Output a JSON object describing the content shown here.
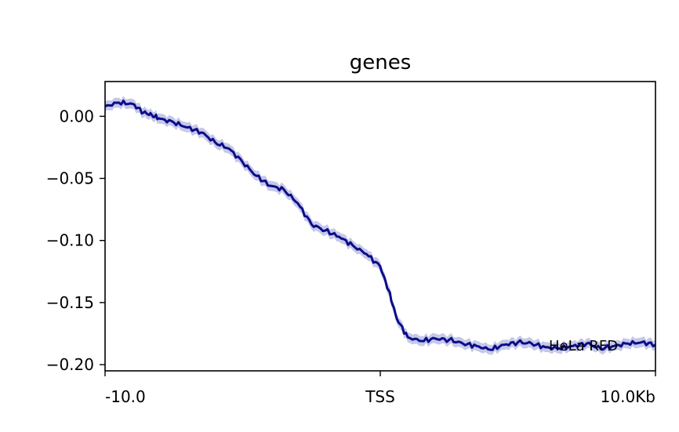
{
  "chart_data": {
    "type": "line",
    "title": "genes",
    "xlabel": "",
    "ylabel": "",
    "x_tick_labels": [
      "-10.0",
      "TSS",
      "10.0Kb"
    ],
    "x_tick_positions": [
      -10,
      0,
      10
    ],
    "xlim": [
      -10,
      10
    ],
    "ylim": [
      -0.205,
      0.028
    ],
    "y_ticks": [
      0.0,
      -0.05,
      -0.1,
      -0.15,
      -0.2
    ],
    "y_tick_labels": [
      "0.00",
      "−0.05",
      "−0.10",
      "−0.15",
      "−0.20"
    ],
    "grid": false,
    "legend_position": "lower-right",
    "series": [
      {
        "name": "HeLa RFD",
        "color": "#0c0c8a",
        "band_color": "#c5c8e8",
        "x": [
          -10,
          -9.5,
          -9,
          -8.6,
          -8.3,
          -8,
          -7.5,
          -7,
          -6.5,
          -6,
          -5.5,
          -5,
          -4.5,
          -4,
          -3.5,
          -3,
          -2.5,
          -2,
          -1.5,
          -1,
          -0.5,
          0,
          0.3,
          0.6,
          1,
          1.5,
          2,
          2.5,
          3,
          3.5,
          4,
          4.5,
          5,
          5.5,
          6,
          6.5,
          7,
          7.5,
          8,
          8.5,
          9,
          9.5,
          10
        ],
        "values": [
          0.008,
          0.011,
          0.01,
          0.003,
          0.001,
          -0.002,
          -0.005,
          -0.009,
          -0.013,
          -0.021,
          -0.026,
          -0.037,
          -0.048,
          -0.056,
          -0.059,
          -0.07,
          -0.087,
          -0.092,
          -0.097,
          -0.104,
          -0.111,
          -0.121,
          -0.14,
          -0.163,
          -0.178,
          -0.181,
          -0.179,
          -0.18,
          -0.183,
          -0.185,
          -0.188,
          -0.184,
          -0.182,
          -0.183,
          -0.186,
          -0.187,
          -0.185,
          -0.183,
          -0.187,
          -0.185,
          -0.183,
          -0.182,
          -0.184
        ],
        "band_halfwidth": 0.004
      }
    ]
  }
}
